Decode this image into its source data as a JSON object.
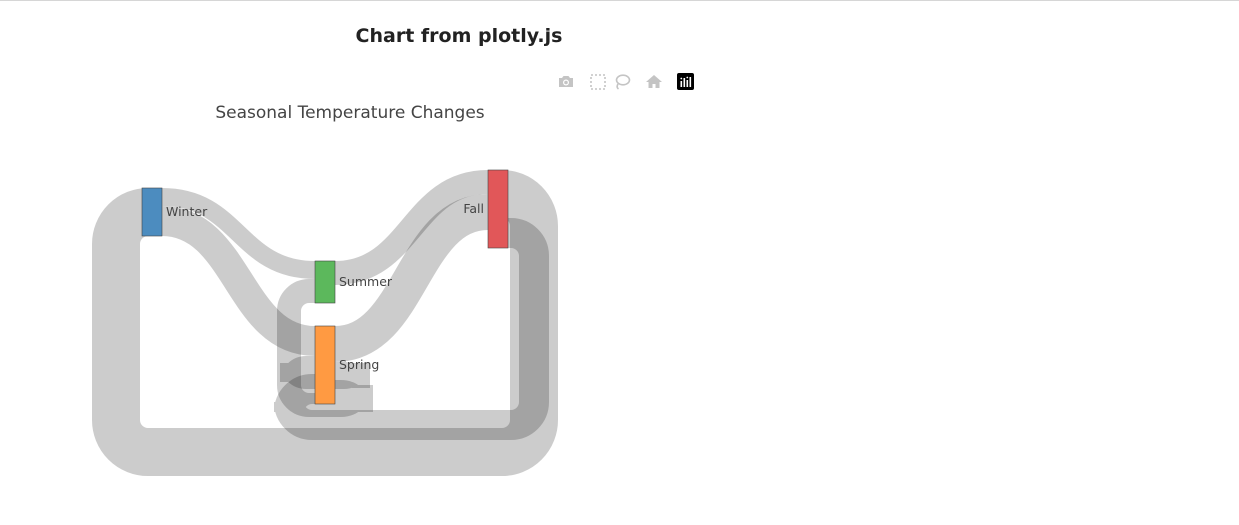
{
  "page": {
    "title": "Chart from plotly.js"
  },
  "modebar": {
    "buttons": [
      {
        "name": "camera-icon",
        "label": "Download plot as a png"
      },
      {
        "name": "box-select-icon",
        "label": "Box Select"
      },
      {
        "name": "lasso-select-icon",
        "label": "Lasso Select"
      },
      {
        "name": "home-icon",
        "label": "Reset axes"
      },
      {
        "name": "plotly-logo-icon",
        "label": "Produced with Plotly"
      }
    ],
    "colors": {
      "icon": "#c4c4c4",
      "logo_bg": "#000000"
    }
  },
  "chart_data": {
    "type": "sankey",
    "title": "Seasonal Temperature Changes",
    "nodes": [
      {
        "label": "Winter",
        "color": "#4c8cbf"
      },
      {
        "label": "Summer",
        "color": "#5cb85c"
      },
      {
        "label": "Spring",
        "color": "#ff9a42"
      },
      {
        "label": "Fall",
        "color": "#e15759"
      }
    ],
    "links": [
      {
        "source": "Winter",
        "target": "Summer",
        "value": 3
      },
      {
        "source": "Winter",
        "target": "Spring",
        "value": 5
      },
      {
        "source": "Summer",
        "target": "Fall",
        "value": 4
      },
      {
        "source": "Spring",
        "target": "Fall",
        "value": 6
      },
      {
        "source": "Spring",
        "target": "Spring",
        "value": 3
      },
      {
        "source": "Spring",
        "target": "Summer",
        "value": 4
      },
      {
        "source": "Fall",
        "target": "Winter",
        "value": 8
      },
      {
        "source": "Fall",
        "target": "Spring",
        "value": 5
      }
    ],
    "link_color": "#c7c7c7"
  }
}
